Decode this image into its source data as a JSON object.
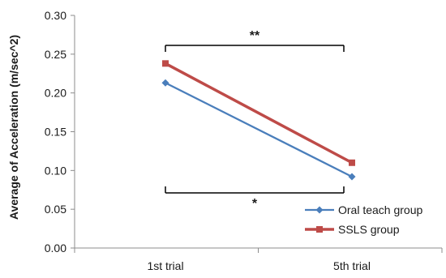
{
  "chart_data": {
    "type": "line",
    "categories": [
      "1st trial",
      "5th trial"
    ],
    "series": [
      {
        "name": "Oral teach group",
        "values": [
          0.213,
          0.092
        ],
        "color": "#4a7ebb",
        "marker": "diamond"
      },
      {
        "name": "SSLS group",
        "values": [
          0.238,
          0.11
        ],
        "color": "#be4b48",
        "marker": "square"
      }
    ],
    "ylabel": "Average of Acceleration (m/sec^2)",
    "xlabel": "",
    "ylim": [
      0,
      0.3
    ],
    "yticks": [
      "0.00",
      "0.05",
      "0.10",
      "0.15",
      "0.20",
      "0.25",
      "0.30"
    ],
    "grid": false,
    "legend_position": "bottom-right",
    "annotations": [
      {
        "label": "**",
        "series": "SSLS group",
        "placement": "above"
      },
      {
        "label": "*",
        "series": "Oral teach group",
        "placement": "below"
      }
    ]
  }
}
